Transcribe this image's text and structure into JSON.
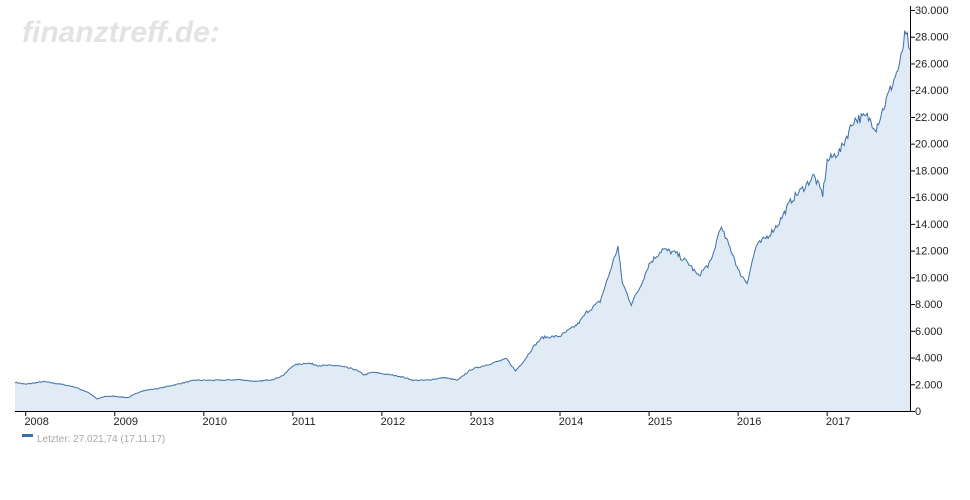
{
  "watermark": "finanztreff.de:",
  "legend": {
    "label": "Letzter: 27.021,74 (17.11.17)",
    "color": "#3c6fa8"
  },
  "colors": {
    "line": "#3c6fa8",
    "area": "#e1ebf6",
    "axis": "#000000"
  },
  "chart_data": {
    "type": "area",
    "x_tick_labels": [
      "2008",
      "2009",
      "2010",
      "2011",
      "2012",
      "2013",
      "2014",
      "2015",
      "2016",
      "2017"
    ],
    "y_tick_labels": [
      "0",
      "2.000",
      "4.000",
      "6.000",
      "8.000",
      "10.000",
      "12.000",
      "14.000",
      "16.000",
      "18.000",
      "20.000",
      "22.000",
      "24.000",
      "26.000",
      "28.000",
      "30.000"
    ],
    "y_ticks": [
      0,
      2000,
      4000,
      6000,
      8000,
      10000,
      12000,
      14000,
      16000,
      18000,
      20000,
      22000,
      24000,
      26000,
      28000,
      30000
    ],
    "ylim": [
      0,
      30000
    ],
    "xlim": [
      2007.88,
      2017.93
    ],
    "grid": false,
    "y_axis_position": "right",
    "series": [
      {
        "x": [
          2007.88,
          2008.0,
          2008.2,
          2008.4,
          2008.55,
          2008.7,
          2008.8,
          2008.9,
          2009.0,
          2009.15,
          2009.3,
          2009.5,
          2009.7,
          2009.9,
          2010.0,
          2010.2,
          2010.4,
          2010.6,
          2010.8,
          2010.9,
          2011.0,
          2011.15,
          2011.3,
          2011.5,
          2011.7,
          2011.8,
          2011.9,
          2012.0,
          2012.2,
          2012.35,
          2012.5,
          2012.7,
          2012.85,
          2013.0,
          2013.2,
          2013.3,
          2013.4,
          2013.5,
          2013.6,
          2013.7,
          2013.8,
          2014.0,
          2014.2,
          2014.3,
          2014.45,
          2014.55,
          2014.65,
          2014.7,
          2014.8,
          2014.9,
          2015.0,
          2015.15,
          2015.3,
          2015.45,
          2015.55,
          2015.7,
          2015.8,
          2015.95,
          2016.0,
          2016.1,
          2016.2,
          2016.35,
          2016.45,
          2016.6,
          2016.75,
          2016.85,
          2016.95,
          2017.0,
          2017.15,
          2017.3,
          2017.45,
          2017.55,
          2017.65,
          2017.75,
          2017.82,
          2017.87,
          2017.9,
          2017.93
        ],
        "values": [
          2150,
          2000,
          2200,
          2000,
          1800,
          1400,
          900,
          1100,
          1100,
          1000,
          1500,
          1700,
          2000,
          2300,
          2300,
          2300,
          2350,
          2200,
          2400,
          2700,
          3400,
          3600,
          3400,
          3400,
          3100,
          2700,
          2900,
          2800,
          2600,
          2300,
          2300,
          2500,
          2300,
          3100,
          3500,
          3700,
          3900,
          3000,
          3800,
          4800,
          5500,
          5600,
          6500,
          7400,
          8200,
          10200,
          12300,
          9600,
          8000,
          9300,
          11000,
          12100,
          11800,
          11000,
          10100,
          11200,
          13800,
          11600,
          10500,
          9600,
          12300,
          13200,
          14000,
          15800,
          16800,
          17600,
          16200,
          18700,
          19500,
          21800,
          22000,
          21200,
          23000,
          24800,
          26000,
          28000,
          27900,
          27000
        ]
      }
    ]
  }
}
